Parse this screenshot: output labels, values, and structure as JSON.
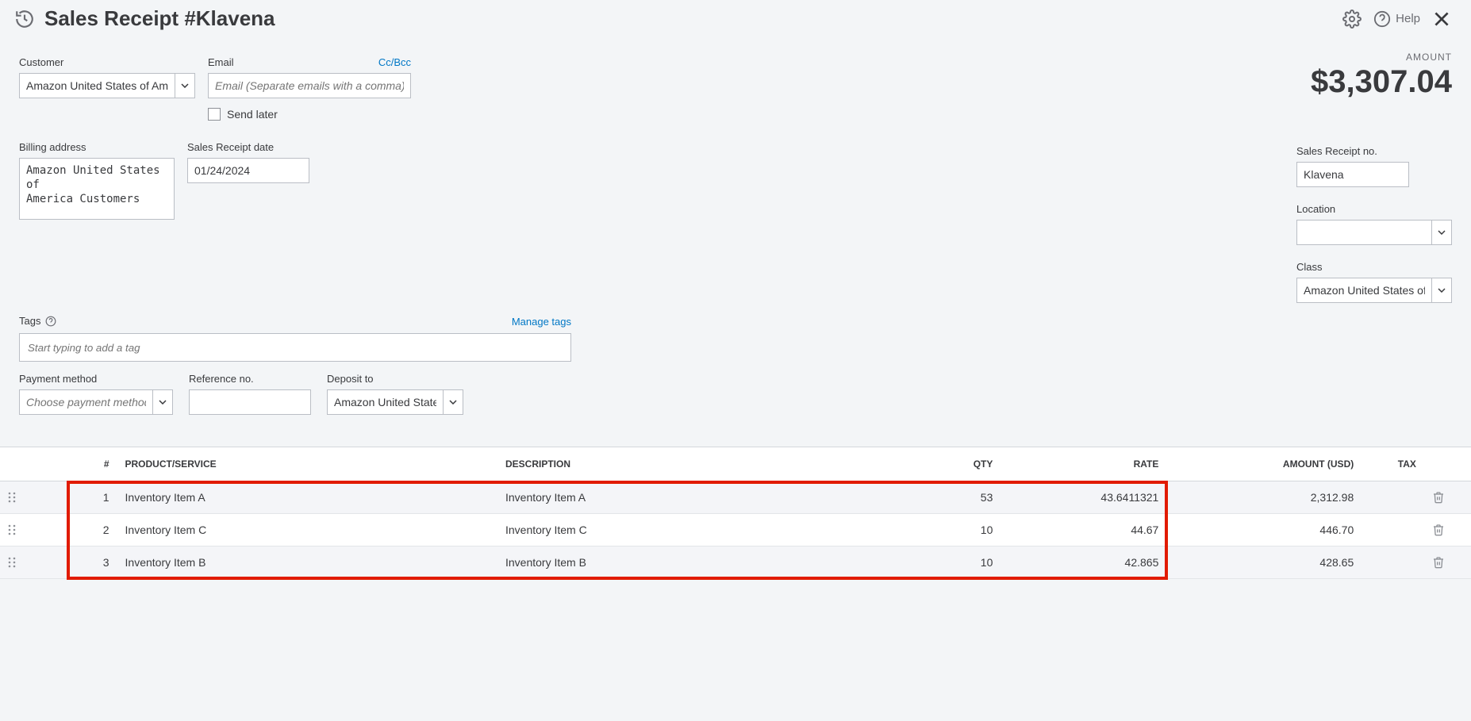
{
  "header": {
    "title": "Sales Receipt #Klavena",
    "help_label": "Help"
  },
  "amount": {
    "label": "AMOUNT",
    "value": "$3,307.04"
  },
  "customer": {
    "label": "Customer",
    "value": "Amazon United States of America"
  },
  "email": {
    "label": "Email",
    "cc_link": "Cc/Bcc",
    "placeholder": "Email (Separate emails with a comma)",
    "send_later_label": "Send later"
  },
  "billing": {
    "label": "Billing address",
    "value": "Amazon United States of\nAmerica Customers"
  },
  "sales_date": {
    "label": "Sales Receipt date",
    "value": "01/24/2024"
  },
  "receipt_no": {
    "label": "Sales Receipt no.",
    "value": "Klavena"
  },
  "location": {
    "label": "Location",
    "value": ""
  },
  "class": {
    "label": "Class",
    "value": "Amazon United States of Am"
  },
  "tags": {
    "label": "Tags",
    "manage_link": "Manage tags",
    "placeholder": "Start typing to add a tag"
  },
  "payment": {
    "method_label": "Payment method",
    "method_placeholder": "Choose payment method",
    "ref_label": "Reference no.",
    "deposit_label": "Deposit to",
    "deposit_value": "Amazon United States o"
  },
  "table": {
    "columns": {
      "num": "#",
      "product": "PRODUCT/SERVICE",
      "description": "DESCRIPTION",
      "qty": "QTY",
      "rate": "RATE",
      "amount": "AMOUNT (USD)",
      "tax": "TAX"
    },
    "rows": [
      {
        "n": "1",
        "product": "Inventory Item A",
        "desc": "Inventory Item A",
        "qty": "53",
        "rate": "43.6411321",
        "amount": "2,312.98",
        "tax": ""
      },
      {
        "n": "2",
        "product": "Inventory Item C",
        "desc": "Inventory Item C",
        "qty": "10",
        "rate": "44.67",
        "amount": "446.70",
        "tax": ""
      },
      {
        "n": "3",
        "product": "Inventory Item B",
        "desc": "Inventory Item B",
        "qty": "10",
        "rate": "42.865",
        "amount": "428.65",
        "tax": ""
      }
    ]
  },
  "colors": {
    "link": "#0077c5",
    "border": "#babec5",
    "highlight": "#e11b00"
  }
}
